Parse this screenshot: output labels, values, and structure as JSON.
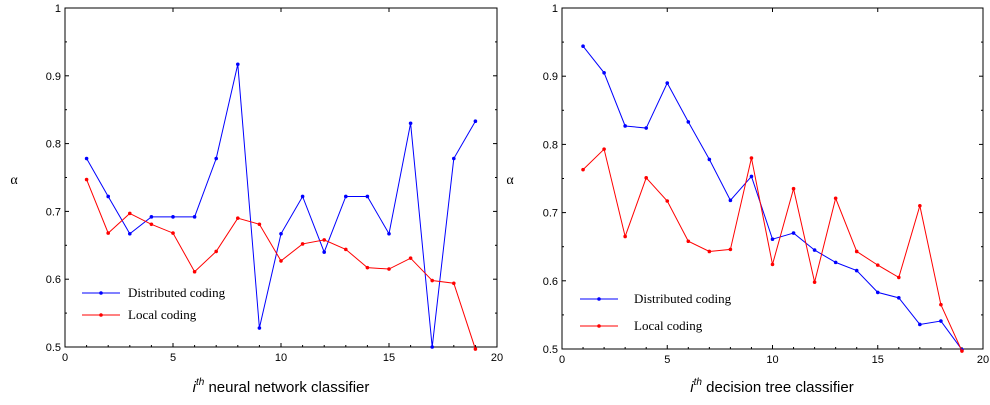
{
  "chart_data": [
    {
      "type": "line",
      "ylabel": "α",
      "xlabel": {
        "prefix": "i",
        "sup": "th",
        "rest": " neural network classifier"
      },
      "xlim": [
        0,
        20
      ],
      "ylim": [
        0.5,
        1
      ],
      "x_ticks": [
        0,
        5,
        10,
        15,
        20
      ],
      "y_ticks": [
        0.5,
        0.6,
        0.7,
        0.8,
        0.9,
        1
      ],
      "y_tick_labels": [
        "0.5",
        "0.6",
        "0.7",
        "0.8",
        "0.9",
        "1"
      ],
      "legend_position": "bottom-left",
      "x": [
        1,
        2,
        3,
        4,
        5,
        6,
        7,
        8,
        9,
        10,
        11,
        12,
        13,
        14,
        15,
        16,
        17,
        18,
        19
      ],
      "series": [
        {
          "name": "Distributed coding",
          "color": "#0000ff",
          "values": [
            0.778,
            0.722,
            0.667,
            0.692,
            0.692,
            0.692,
            0.778,
            0.917,
            0.528,
            0.667,
            0.722,
            0.64,
            0.722,
            0.722,
            0.667,
            0.83,
            0.5,
            0.778,
            0.833
          ]
        },
        {
          "name": "Local coding",
          "color": "#ff0000",
          "values": [
            0.747,
            0.668,
            0.697,
            0.681,
            0.668,
            0.611,
            0.641,
            0.69,
            0.681,
            0.627,
            0.652,
            0.658,
            0.644,
            0.617,
            0.615,
            0.631,
            0.598,
            0.594,
            0.497
          ]
        }
      ]
    },
    {
      "type": "line",
      "ylabel": "α",
      "xlabel": {
        "prefix": "i",
        "sup": "th",
        "rest": " decision tree classifier"
      },
      "xlim": [
        0,
        20
      ],
      "ylim": [
        0.5,
        1
      ],
      "x_ticks": [
        0,
        5,
        10,
        15,
        20
      ],
      "y_ticks": [
        0.5,
        0.6,
        0.7,
        0.8,
        0.9,
        1
      ],
      "y_tick_labels": [
        "0.5",
        "0.6",
        "0.7",
        "0.8",
        "0.9",
        "1"
      ],
      "legend_position": "bottom-left",
      "x": [
        1,
        2,
        3,
        4,
        5,
        6,
        7,
        8,
        9,
        10,
        11,
        12,
        13,
        14,
        15,
        16,
        17,
        18,
        19
      ],
      "series": [
        {
          "name": "Distributed coding",
          "color": "#0000ff",
          "values": [
            0.944,
            0.905,
            0.827,
            0.824,
            0.89,
            0.833,
            0.778,
            0.718,
            0.753,
            0.661,
            0.67,
            0.645,
            0.627,
            0.615,
            0.583,
            0.575,
            0.536,
            0.541,
            0.499
          ]
        },
        {
          "name": "Local coding",
          "color": "#ff0000",
          "values": [
            0.763,
            0.793,
            0.665,
            0.751,
            0.717,
            0.658,
            0.643,
            0.646,
            0.78,
            0.624,
            0.735,
            0.598,
            0.721,
            0.643,
            0.623,
            0.605,
            0.71,
            0.565,
            0.497
          ]
        }
      ]
    }
  ]
}
